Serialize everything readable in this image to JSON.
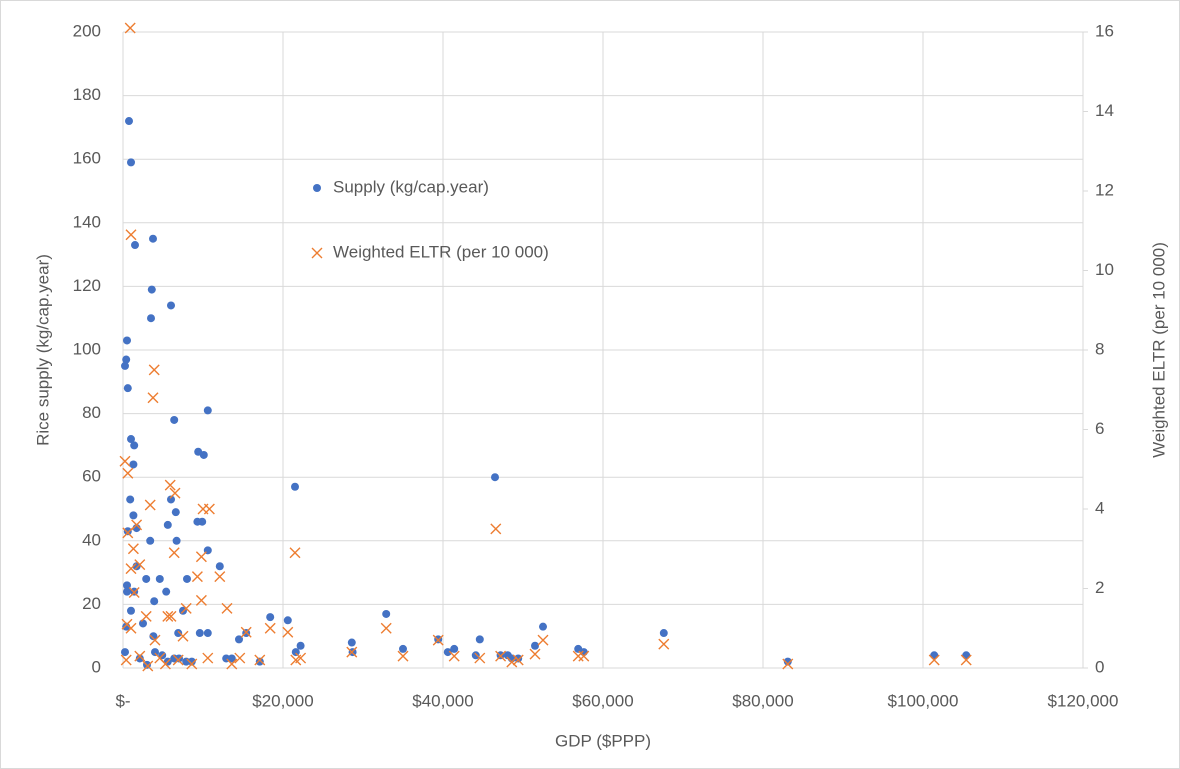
{
  "chart_data": {
    "type": "scatter",
    "xlabel": "GDP ($PPP)",
    "ylabel": "Rice supply (kg/cap.year)",
    "y2label": "Weighted ELTR (per 10 000)",
    "xlim": [
      0,
      120000
    ],
    "xticks": [
      {
        "value": 0,
        "label": "$-"
      },
      {
        "value": 20000,
        "label": "$20,000"
      },
      {
        "value": 40000,
        "label": "$40,000"
      },
      {
        "value": 60000,
        "label": "$60,000"
      },
      {
        "value": 80000,
        "label": "$80,000"
      },
      {
        "value": 100000,
        "label": "$100,000"
      },
      {
        "value": 120000,
        "label": "$120,000"
      }
    ],
    "ylim": [
      0,
      200
    ],
    "yticks": [
      0,
      20,
      40,
      60,
      80,
      100,
      120,
      140,
      160,
      180,
      200
    ],
    "y2lim": [
      0,
      16
    ],
    "y2ticks": [
      0,
      2,
      4,
      6,
      8,
      10,
      12,
      14,
      16
    ],
    "grid": true,
    "legend": "upper left",
    "series": [
      {
        "name": "Supply (kg/cap.year)",
        "color": "#4472c4",
        "marker": "circle",
        "x": [
          750,
          1000,
          1500,
          3600,
          3750,
          3500,
          6000,
          500,
          400,
          250,
          600,
          10600,
          1000,
          1400,
          1300,
          6400,
          9400,
          10100,
          46500,
          21500,
          900,
          6000,
          6600,
          1300,
          1700,
          600,
          3400,
          6700,
          9300,
          9900,
          5600,
          10600,
          12100,
          1700,
          2900,
          4600,
          8000,
          5400,
          500,
          500,
          1400,
          3900,
          1000,
          7500,
          18400,
          20600,
          32900,
          52500,
          67600,
          2500,
          400,
          6900,
          9600,
          10600,
          15400,
          3800,
          14500,
          28600,
          39400,
          44600,
          51500,
          56900,
          57600,
          22200,
          35000,
          41400,
          40600,
          44100,
          47200,
          48100,
          48600,
          49400,
          21600,
          28700,
          250,
          4000,
          4900,
          6400,
          7000,
          8600,
          12900,
          13600,
          17100,
          83100,
          101400,
          105400,
          2100,
          3000,
          5600,
          7900
        ],
        "values": [
          172,
          159,
          133,
          119,
          135,
          110,
          114,
          103,
          97,
          95,
          88,
          81,
          72,
          70,
          64,
          78,
          68,
          67,
          60,
          57,
          53,
          53,
          49,
          48,
          44,
          43,
          40,
          40,
          46,
          46,
          45,
          37,
          32,
          32,
          28,
          28,
          28,
          24,
          26,
          24,
          24,
          21,
          18,
          18,
          16,
          15,
          17,
          13,
          11,
          14,
          13,
          11,
          11,
          11,
          11,
          10,
          9,
          8,
          9,
          9,
          7,
          6,
          5,
          7,
          6,
          6,
          5,
          4,
          4,
          4,
          3,
          3,
          5,
          5,
          5,
          5,
          4,
          3,
          3,
          2,
          3,
          3,
          2,
          2,
          4,
          4,
          3,
          1,
          2,
          2
        ]
      },
      {
        "name": "Weighted ELTR (per 10 000)",
        "color": "#ed7d31",
        "marker": "x",
        "axis": "y2",
        "x": [
          900,
          1000,
          3750,
          3900,
          250,
          600,
          5900,
          6500,
          10000,
          10800,
          3400,
          46600,
          21500,
          6400,
          1300,
          1700,
          600,
          9800,
          2100,
          1000,
          9300,
          12100,
          9800,
          5600,
          6000,
          13000,
          7900,
          18400,
          32900,
          52500,
          67600,
          20600,
          15400,
          1000,
          2900,
          500,
          4000,
          39400,
          28600,
          22200,
          35000,
          41400,
          44600,
          51500,
          56900,
          57600,
          47200,
          48600,
          49400,
          83100,
          101400,
          105400,
          4600,
          6900,
          8600,
          13600,
          17100,
          2100,
          400,
          3100,
          5300,
          10600,
          14600,
          21600,
          7500,
          1400
        ],
        "values": [
          16.1,
          10.9,
          6.8,
          7.5,
          5.2,
          4.9,
          4.6,
          4.4,
          4.0,
          4.0,
          4.1,
          3.5,
          2.9,
          2.9,
          3.0,
          3.6,
          3.4,
          2.8,
          2.6,
          2.5,
          2.3,
          2.3,
          1.7,
          1.3,
          1.3,
          1.5,
          1.5,
          1.0,
          1.0,
          0.7,
          0.6,
          0.9,
          0.9,
          1.0,
          1.3,
          1.1,
          0.7,
          0.7,
          0.4,
          0.25,
          0.3,
          0.3,
          0.25,
          0.35,
          0.3,
          0.3,
          0.3,
          0.15,
          0.2,
          0.1,
          0.2,
          0.2,
          0.25,
          0.2,
          0.1,
          0.1,
          0.2,
          0.3,
          0.2,
          0.05,
          0.1,
          0.25,
          0.25,
          0.2,
          0.8,
          1.9
        ]
      }
    ]
  }
}
